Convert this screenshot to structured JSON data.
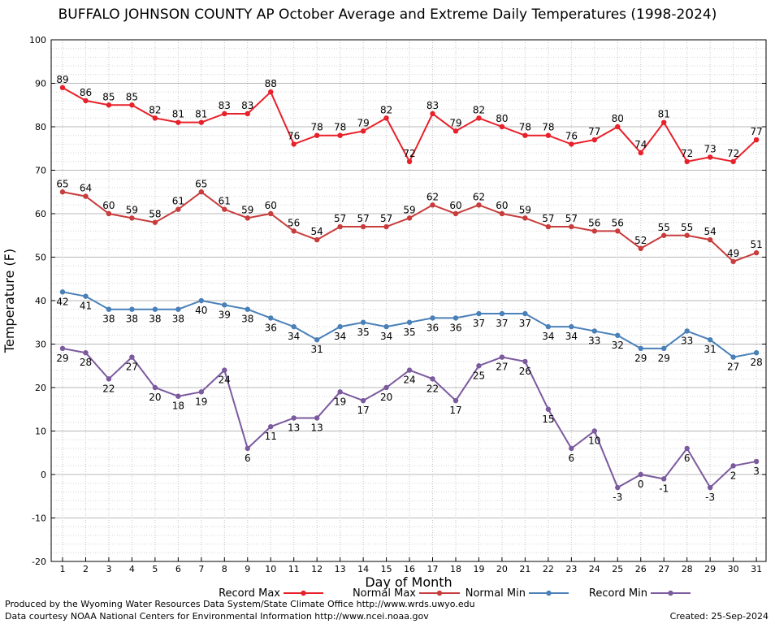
{
  "chart_data": {
    "type": "line",
    "title": "BUFFALO JOHNSON COUNTY AP October Average and Extreme Daily Temperatures (1998-2024)",
    "xlabel": "Day of Month",
    "ylabel": "Temperature (F)",
    "ylim": [
      -20,
      100
    ],
    "yticks": [
      -20,
      -10,
      0,
      10,
      20,
      30,
      40,
      50,
      60,
      70,
      80,
      90,
      100
    ],
    "x": [
      1,
      2,
      3,
      4,
      5,
      6,
      7,
      8,
      9,
      10,
      11,
      12,
      13,
      14,
      15,
      16,
      17,
      18,
      19,
      20,
      21,
      22,
      23,
      24,
      25,
      26,
      27,
      28,
      29,
      30,
      31
    ],
    "grid": true,
    "legend_position": "bottom",
    "series": [
      {
        "name": "Record Max",
        "color": "#e8202a",
        "label_pos": "above",
        "values": [
          89,
          86,
          85,
          85,
          82,
          81,
          81,
          83,
          83,
          88,
          76,
          78,
          78,
          79,
          82,
          72,
          83,
          79,
          82,
          80,
          78,
          78,
          76,
          77,
          80,
          74,
          81,
          72,
          73,
          72,
          77
        ]
      },
      {
        "name": "Normal Max",
        "color": "#c83c3c",
        "label_pos": "above",
        "values": [
          65,
          64,
          60,
          59,
          58,
          61,
          65,
          61,
          59,
          60,
          56,
          54,
          57,
          57,
          57,
          59,
          62,
          60,
          62,
          60,
          59,
          57,
          57,
          56,
          56,
          52,
          55,
          55,
          54,
          49,
          51
        ]
      },
      {
        "name": "Normal Min",
        "color": "#4a80b8",
        "label_pos": "below",
        "values": [
          42,
          41,
          38,
          38,
          38,
          38,
          40,
          39,
          38,
          36,
          34,
          31,
          34,
          35,
          34,
          35,
          36,
          36,
          37,
          37,
          37,
          34,
          34,
          33,
          32,
          29,
          29,
          33,
          31,
          27,
          28
        ]
      },
      {
        "name": "Record Min",
        "color": "#7b5a9e",
        "label_pos": "below",
        "values": [
          29,
          28,
          22,
          27,
          20,
          18,
          19,
          24,
          6,
          11,
          13,
          13,
          19,
          17,
          20,
          24,
          22,
          17,
          25,
          27,
          26,
          15,
          6,
          10,
          -3,
          0,
          -1,
          6,
          -3,
          2,
          3
        ]
      }
    ]
  },
  "footer": {
    "produced_by": "Produced by the Wyoming Water Resources Data System/State Climate Office http://www.wrds.uwyo.edu",
    "courtesy": "Data courtesy NOAA National Centers for Environmental Information http://www.ncei.noaa.gov",
    "created": "Created:  25-Sep-2024"
  }
}
